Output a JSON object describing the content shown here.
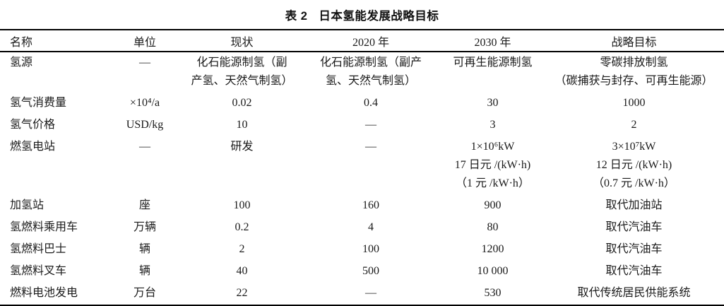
{
  "page": {
    "background": "#ffffff",
    "text_color": "#1a1a1a",
    "rule_color": "#000000"
  },
  "title": {
    "number": "表 2",
    "text": "日本氢能发展战略目标"
  },
  "table": {
    "headers": [
      "名称",
      "单位",
      "现状",
      "2020 年",
      "2030 年",
      "战略目标"
    ],
    "rows": [
      {
        "name": "氢源",
        "unit": "—",
        "current": [
          "化石能源制氢（副",
          "产氢、天然气制氢）"
        ],
        "y2020": [
          "化石能源制氢（副产",
          "氢、天然气制氢）"
        ],
        "y2030": [
          "可再生能源制氢"
        ],
        "target": [
          "零碳排放制氢",
          "（碳捕获与封存、可再生能源）"
        ]
      },
      {
        "name": "氢气消费量",
        "unit": "×10⁴/a",
        "current": [
          "0.02"
        ],
        "y2020": [
          "0.4"
        ],
        "y2030": [
          "30"
        ],
        "target": [
          "1000"
        ]
      },
      {
        "name": "氢气价格",
        "unit": "USD/kg",
        "current": [
          "10"
        ],
        "y2020": [
          "—"
        ],
        "y2030": [
          "3"
        ],
        "target": [
          "2"
        ]
      },
      {
        "name": "燃氢电站",
        "unit": "—",
        "current": [
          "研发"
        ],
        "y2020": [
          "—"
        ],
        "y2030": [
          "1×10⁶kW",
          "17 日元 /(kW·h)",
          "（1 元 /kW·h）"
        ],
        "target": [
          "3×10⁷kW",
          "12 日元 /(kW·h)",
          "（0.7 元 /kW·h）"
        ]
      },
      {
        "name": "加氢站",
        "unit": "座",
        "current": [
          "100"
        ],
        "y2020": [
          "160"
        ],
        "y2030": [
          "900"
        ],
        "target": [
          "取代加油站"
        ]
      },
      {
        "name": "氢燃料乘用车",
        "unit": "万辆",
        "current": [
          "0.2"
        ],
        "y2020": [
          "4"
        ],
        "y2030": [
          "80"
        ],
        "target": [
          "取代汽油车"
        ]
      },
      {
        "name": "氢燃料巴士",
        "unit": "辆",
        "current": [
          "2"
        ],
        "y2020": [
          "100"
        ],
        "y2030": [
          "1200"
        ],
        "target": [
          "取代汽油车"
        ]
      },
      {
        "name": "氢燃料叉车",
        "unit": "辆",
        "current": [
          "40"
        ],
        "y2020": [
          "500"
        ],
        "y2030": [
          "10 000"
        ],
        "target": [
          "取代汽油车"
        ]
      },
      {
        "name": "燃料电池发电",
        "unit": "万台",
        "current": [
          "22"
        ],
        "y2020": [
          "—"
        ],
        "y2030": [
          "530"
        ],
        "target": [
          "取代传统居民供能系统"
        ]
      }
    ]
  }
}
